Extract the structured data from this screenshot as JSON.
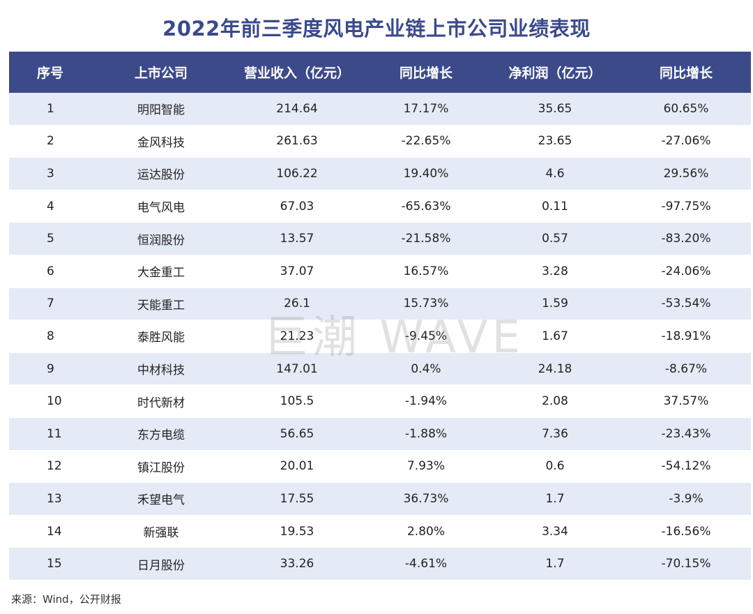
{
  "title": "2022年前三季度风电产业链上市公司业绩表现",
  "watermark": "巨潮 WAVE",
  "source": "来源：Wind，公开财报",
  "chart_data": {
    "type": "table",
    "title": "2022年前三季度风电产业链上市公司业绩表现",
    "columns": [
      "序号",
      "上市公司",
      "营业收入（亿元）",
      "同比增长",
      "净利润（亿元）",
      "同比增长"
    ],
    "rows": [
      [
        "1",
        "明阳智能",
        "214.64",
        "17.17%",
        "35.65",
        "60.65%"
      ],
      [
        "2",
        "金风科技",
        "261.63",
        "-22.65%",
        "23.65",
        "-27.06%"
      ],
      [
        "3",
        "运达股份",
        "106.22",
        "19.40%",
        "4.6",
        "29.56%"
      ],
      [
        "4",
        "电气风电",
        "67.03",
        "-65.63%",
        "0.11",
        "-97.75%"
      ],
      [
        "5",
        "恒润股份",
        "13.57",
        "-21.58%",
        "0.57",
        "-83.20%"
      ],
      [
        "6",
        "大金重工",
        "37.07",
        "16.57%",
        "3.28",
        "-24.06%"
      ],
      [
        "7",
        "天能重工",
        "26.1",
        "15.73%",
        "1.59",
        "-53.54%"
      ],
      [
        "8",
        "泰胜风能",
        "21.23",
        "-9.45%",
        "1.67",
        "-18.91%"
      ],
      [
        "9",
        "中材科技",
        "147.01",
        "0.4%",
        "24.18",
        "-8.67%"
      ],
      [
        "10",
        "时代新材",
        "105.5",
        "-1.94%",
        "2.08",
        "37.57%"
      ],
      [
        "11",
        "东方电缆",
        "56.65",
        "-1.88%",
        "7.36",
        "-23.43%"
      ],
      [
        "12",
        "镇江股份",
        "20.01",
        "7.93%",
        "0.6",
        "-54.12%"
      ],
      [
        "13",
        "禾望电气",
        "17.55",
        "36.73%",
        "1.7",
        "-3.9%"
      ],
      [
        "14",
        "新强联",
        "19.53",
        "2.80%",
        "3.34",
        "-16.56%"
      ],
      [
        "15",
        "日月股份",
        "33.26",
        "-4.61%",
        "1.7",
        "-70.15%"
      ]
    ]
  },
  "colors": {
    "header_bg": "#3c4a8a",
    "title": "#3a4a8c",
    "stripe": "#e4ebf6"
  }
}
